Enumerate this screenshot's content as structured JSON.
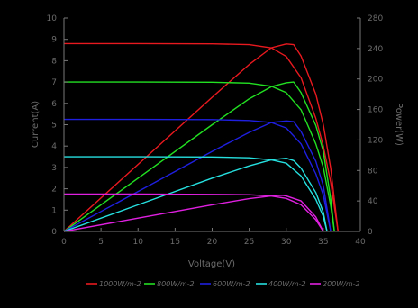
{
  "chart_data": {
    "type": "line",
    "title": "",
    "xlabel": "Voltage(V)",
    "ylabel_left": "Current(A)",
    "ylabel_right": "Power(W)",
    "xlim": [
      0,
      40
    ],
    "ylim_left": [
      0,
      10
    ],
    "ylim_right": [
      0,
      280
    ],
    "x_ticks": [
      "0",
      "5",
      "10",
      "15",
      "20",
      "25",
      "30",
      "35",
      "40"
    ],
    "y_left_ticks": [
      "0",
      "1",
      "2",
      "3",
      "4",
      "5",
      "6",
      "7",
      "8",
      "9",
      "10"
    ],
    "y_right_ticks": [
      "0",
      "40",
      "80",
      "120",
      "160",
      "200",
      "240",
      "280"
    ],
    "grid": false,
    "legend_position": "bottom",
    "series": [
      {
        "name": "1000W/m-2",
        "color": "#e8191f",
        "isc": 8.8,
        "voc": 37.0,
        "vmp": 30.6,
        "imp": 8.0,
        "pmax": 246,
        "iv": [
          [
            0,
            8.8
          ],
          [
            10,
            8.8
          ],
          [
            20,
            8.79
          ],
          [
            25,
            8.75
          ],
          [
            28,
            8.6
          ],
          [
            30,
            8.2
          ],
          [
            32,
            7.2
          ],
          [
            34,
            5.3
          ],
          [
            35,
            4.0
          ],
          [
            36,
            2.3
          ],
          [
            37,
            0
          ]
        ],
        "pv": [
          [
            0,
            0
          ],
          [
            10,
            88
          ],
          [
            20,
            176
          ],
          [
            25,
            219
          ],
          [
            28,
            241
          ],
          [
            30,
            246
          ],
          [
            31,
            245
          ],
          [
            32,
            230
          ],
          [
            34,
            180
          ],
          [
            35,
            140
          ],
          [
            36,
            83
          ],
          [
            37,
            0
          ]
        ]
      },
      {
        "name": "800W/m-2",
        "color": "#22e022",
        "isc": 7.0,
        "voc": 36.5,
        "vmp": 30.6,
        "imp": 6.4,
        "pmax": 196,
        "iv": [
          [
            0,
            7.0
          ],
          [
            10,
            7.0
          ],
          [
            20,
            6.99
          ],
          [
            25,
            6.95
          ],
          [
            28,
            6.8
          ],
          [
            30,
            6.5
          ],
          [
            32,
            5.7
          ],
          [
            34,
            4.1
          ],
          [
            35,
            3.0
          ],
          [
            36,
            1.2
          ],
          [
            36.5,
            0
          ]
        ],
        "pv": [
          [
            0,
            0
          ],
          [
            10,
            70
          ],
          [
            20,
            140
          ],
          [
            25,
            174
          ],
          [
            28,
            190
          ],
          [
            30,
            195
          ],
          [
            31,
            196
          ],
          [
            32,
            182
          ],
          [
            34,
            139
          ],
          [
            35,
            105
          ],
          [
            36,
            43
          ],
          [
            36.5,
            0
          ]
        ]
      },
      {
        "name": "600W/m-2",
        "color": "#1f1fe0",
        "isc": 5.25,
        "voc": 36.0,
        "vmp": 30.3,
        "imp": 4.8,
        "pmax": 145,
        "iv": [
          [
            0,
            5.25
          ],
          [
            10,
            5.25
          ],
          [
            20,
            5.24
          ],
          [
            25,
            5.2
          ],
          [
            28,
            5.1
          ],
          [
            30,
            4.85
          ],
          [
            32,
            4.1
          ],
          [
            34,
            2.7
          ],
          [
            35,
            1.7
          ],
          [
            36,
            0
          ]
        ],
        "pv": [
          [
            0,
            0
          ],
          [
            10,
            52.5
          ],
          [
            20,
            105
          ],
          [
            25,
            130
          ],
          [
            28,
            143
          ],
          [
            30,
            145
          ],
          [
            31,
            144
          ],
          [
            32,
            131
          ],
          [
            34,
            92
          ],
          [
            35,
            60
          ],
          [
            36,
            0
          ]
        ]
      },
      {
        "name": "400W/m-2",
        "color": "#26e0e0",
        "isc": 3.5,
        "voc": 35.5,
        "vmp": 30.0,
        "imp": 3.2,
        "pmax": 96,
        "iv": [
          [
            0,
            3.5
          ],
          [
            10,
            3.5
          ],
          [
            20,
            3.49
          ],
          [
            25,
            3.45
          ],
          [
            28,
            3.35
          ],
          [
            30,
            3.2
          ],
          [
            32,
            2.6
          ],
          [
            34,
            1.5
          ],
          [
            35,
            0.7
          ],
          [
            35.5,
            0
          ]
        ],
        "pv": [
          [
            0,
            0
          ],
          [
            10,
            35
          ],
          [
            20,
            70
          ],
          [
            25,
            86
          ],
          [
            28,
            94
          ],
          [
            30,
            96
          ],
          [
            31,
            93
          ],
          [
            32,
            83
          ],
          [
            34,
            51
          ],
          [
            35,
            25
          ],
          [
            35.5,
            0
          ]
        ]
      },
      {
        "name": "200W/m-2",
        "color": "#e020e0",
        "isc": 1.75,
        "voc": 35.0,
        "vmp": 29.5,
        "imp": 1.6,
        "pmax": 48,
        "iv": [
          [
            0,
            1.75
          ],
          [
            10,
            1.75
          ],
          [
            20,
            1.74
          ],
          [
            25,
            1.72
          ],
          [
            28,
            1.66
          ],
          [
            30,
            1.55
          ],
          [
            32,
            1.25
          ],
          [
            34,
            0.55
          ],
          [
            35,
            0
          ]
        ],
        "pv": [
          [
            0,
            0
          ],
          [
            10,
            17.5
          ],
          [
            20,
            35
          ],
          [
            25,
            43
          ],
          [
            28,
            46.5
          ],
          [
            29.5,
            47.5
          ],
          [
            30,
            46.5
          ],
          [
            32,
            40
          ],
          [
            34,
            19
          ],
          [
            35,
            0
          ]
        ]
      }
    ]
  }
}
